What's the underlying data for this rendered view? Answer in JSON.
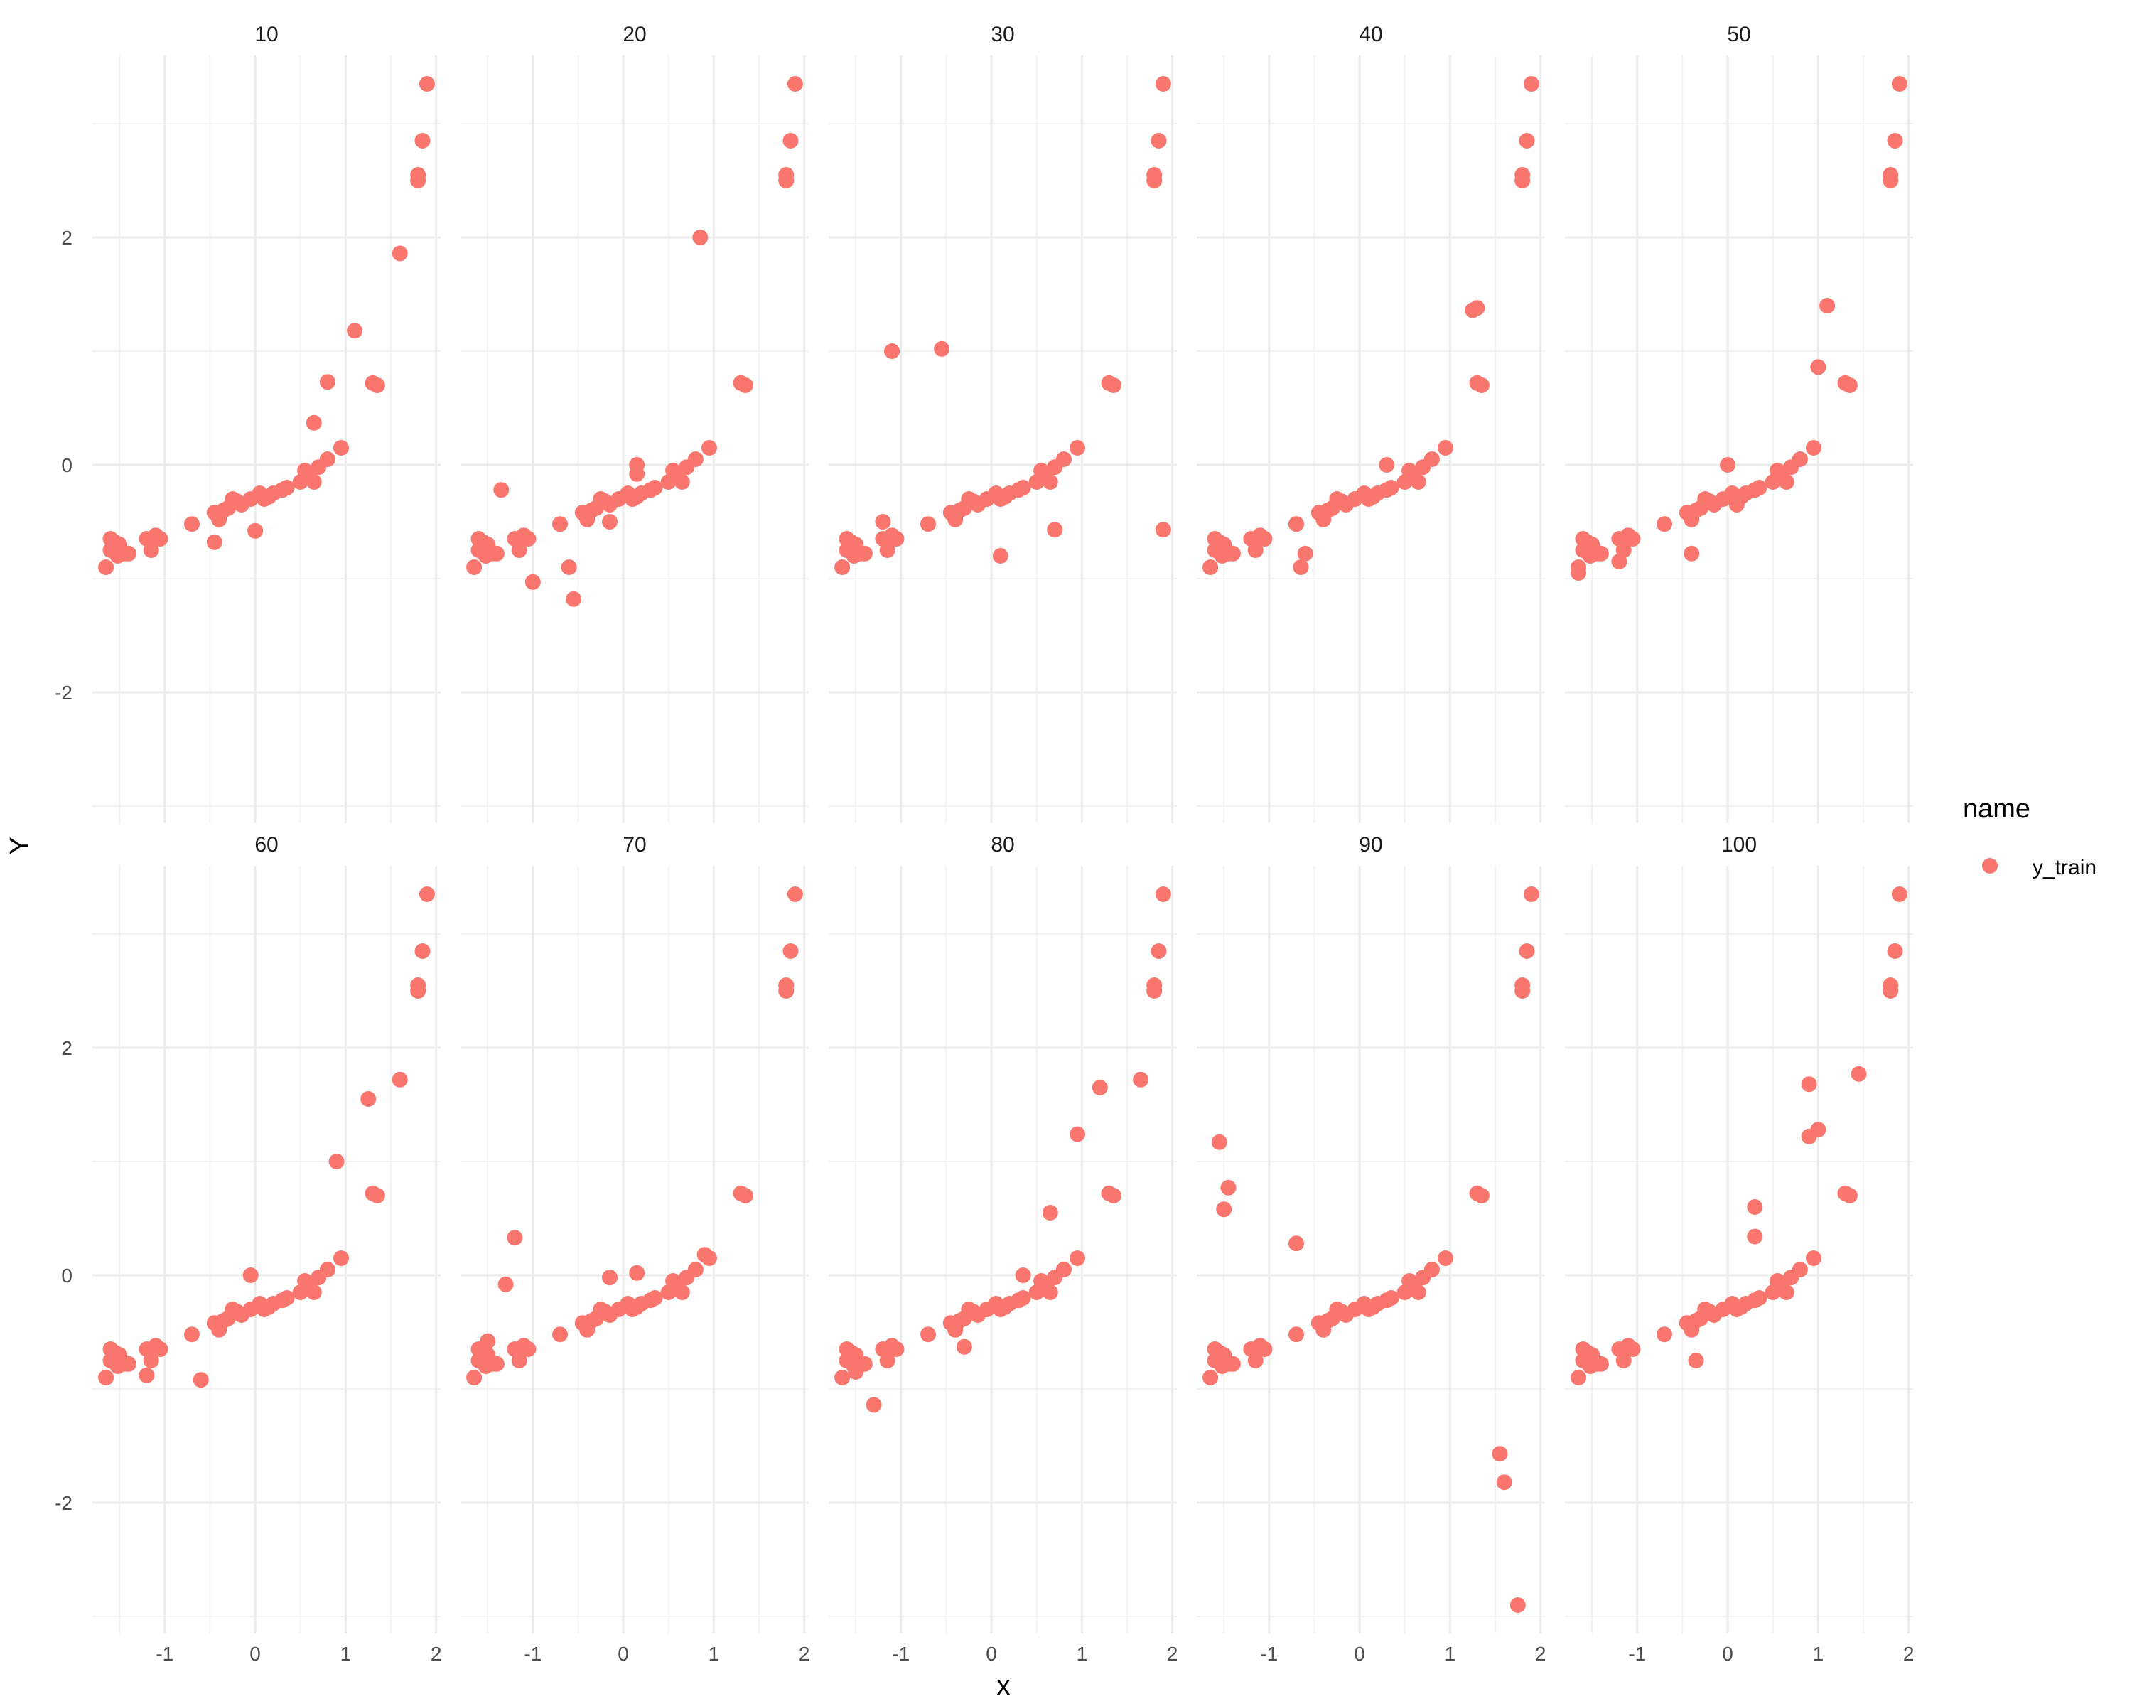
{
  "chart_data": {
    "type": "scatter",
    "facet_labels": [
      "10",
      "20",
      "30",
      "40",
      "50",
      "60",
      "70",
      "80",
      "90",
      "100"
    ],
    "xlabel": "x",
    "ylabel": "Y",
    "xlim": [
      -1.8,
      2.05
    ],
    "ylim": [
      -3.15,
      3.6
    ],
    "xticks": [
      -1,
      0,
      1,
      2
    ],
    "xtick_labels": [
      "-1",
      "0",
      "1",
      "2"
    ],
    "yticks": [
      -2,
      0,
      2
    ],
    "ytick_labels": [
      "-2",
      "0",
      "2"
    ],
    "grid": true,
    "legend": {
      "title": "name",
      "position": "right",
      "entries": [
        "y_train"
      ]
    },
    "colors": {
      "y_train": "#F8766D",
      "grid_major": "#EBEBEB",
      "grid_minor": "#F3F3F3",
      "text": "#4D4D4D"
    },
    "base_points": [
      [
        -1.65,
        -0.9
      ],
      [
        -1.6,
        -0.75
      ],
      [
        -1.6,
        -0.65
      ],
      [
        -1.55,
        -0.68
      ],
      [
        -1.52,
        -0.8
      ],
      [
        -1.5,
        -0.7
      ],
      [
        -1.45,
        -0.78
      ],
      [
        -1.4,
        -0.78
      ],
      [
        -1.2,
        -0.65
      ],
      [
        -1.15,
        -0.75
      ],
      [
        -1.1,
        -0.62
      ],
      [
        -1.05,
        -0.65
      ],
      [
        -0.7,
        -0.52
      ],
      [
        -0.45,
        -0.42
      ],
      [
        -0.4,
        -0.48
      ],
      [
        -0.35,
        -0.4
      ],
      [
        -0.3,
        -0.38
      ],
      [
        -0.25,
        -0.3
      ],
      [
        -0.2,
        -0.32
      ],
      [
        -0.15,
        -0.35
      ],
      [
        -0.05,
        -0.3
      ],
      [
        0.05,
        -0.25
      ],
      [
        0.1,
        -0.3
      ],
      [
        0.15,
        -0.28
      ],
      [
        0.2,
        -0.25
      ],
      [
        0.3,
        -0.22
      ],
      [
        0.35,
        -0.2
      ],
      [
        0.5,
        -0.15
      ],
      [
        0.55,
        -0.05
      ],
      [
        0.6,
        -0.1
      ],
      [
        0.65,
        -0.15
      ],
      [
        0.7,
        -0.02
      ],
      [
        0.8,
        0.05
      ],
      [
        0.95,
        0.15
      ],
      [
        1.3,
        0.72
      ],
      [
        1.35,
        0.7
      ],
      [
        1.8,
        2.5
      ],
      [
        1.8,
        2.55
      ],
      [
        1.85,
        2.85
      ],
      [
        1.9,
        3.35
      ]
    ],
    "series": [
      {
        "facet": "10",
        "name": "y_train",
        "extra_points": [
          [
            -0.45,
            -0.68
          ],
          [
            0.0,
            -0.58
          ],
          [
            0.65,
            0.37
          ],
          [
            0.8,
            0.73
          ],
          [
            1.1,
            1.18
          ],
          [
            1.6,
            1.86
          ]
        ]
      },
      {
        "facet": "20",
        "name": "y_train",
        "extra_points": [
          [
            -1.35,
            -0.22
          ],
          [
            -1.0,
            -1.03
          ],
          [
            -0.6,
            -0.9
          ],
          [
            -0.55,
            -1.18
          ],
          [
            -0.15,
            -0.5
          ],
          [
            0.15,
            0.0
          ],
          [
            0.15,
            -0.08
          ],
          [
            0.85,
            2.0
          ]
        ]
      },
      {
        "facet": "30",
        "name": "y_train",
        "extra_points": [
          [
            -1.2,
            -0.5
          ],
          [
            -1.1,
            1.0
          ],
          [
            -0.55,
            1.02
          ],
          [
            0.1,
            -0.8
          ],
          [
            0.7,
            -0.57
          ],
          [
            1.9,
            -0.57
          ]
        ]
      },
      {
        "facet": "40",
        "name": "y_train",
        "extra_points": [
          [
            -0.7,
            -0.52
          ],
          [
            -0.65,
            -0.9
          ],
          [
            -0.6,
            -0.78
          ],
          [
            0.3,
            0.0
          ],
          [
            1.25,
            1.36
          ],
          [
            1.3,
            1.38
          ]
        ]
      },
      {
        "facet": "50",
        "name": "y_train",
        "extra_points": [
          [
            -1.65,
            -0.95
          ],
          [
            -1.2,
            -0.85
          ],
          [
            -0.4,
            -0.78
          ],
          [
            0.0,
            0.0
          ],
          [
            0.1,
            -0.35
          ],
          [
            1.0,
            0.86
          ],
          [
            1.1,
            1.4
          ]
        ]
      },
      {
        "facet": "60",
        "name": "y_train",
        "extra_points": [
          [
            -1.2,
            -0.88
          ],
          [
            -0.6,
            -0.92
          ],
          [
            -0.05,
            0.0
          ],
          [
            0.9,
            1.0
          ],
          [
            1.25,
            1.55
          ],
          [
            1.6,
            1.72
          ]
        ]
      },
      {
        "facet": "70",
        "name": "y_train",
        "extra_points": [
          [
            -1.5,
            -0.58
          ],
          [
            -1.3,
            -0.08
          ],
          [
            -1.2,
            0.33
          ],
          [
            -0.15,
            -0.02
          ],
          [
            0.15,
            0.02
          ],
          [
            0.9,
            0.18
          ]
        ]
      },
      {
        "facet": "80",
        "name": "y_train",
        "extra_points": [
          [
            -1.5,
            -0.85
          ],
          [
            -1.3,
            -1.14
          ],
          [
            -0.3,
            -0.63
          ],
          [
            0.35,
            0.0
          ],
          [
            0.65,
            0.55
          ],
          [
            0.95,
            1.24
          ],
          [
            1.2,
            1.65
          ],
          [
            1.65,
            1.72
          ]
        ]
      },
      {
        "facet": "90",
        "name": "y_train",
        "extra_points": [
          [
            -1.55,
            1.17
          ],
          [
            -1.5,
            0.58
          ],
          [
            -1.45,
            0.77
          ],
          [
            -0.7,
            0.28
          ],
          [
            1.55,
            -1.57
          ],
          [
            1.6,
            -1.82
          ],
          [
            1.75,
            -2.9
          ]
        ]
      },
      {
        "facet": "100",
        "name": "y_train",
        "extra_points": [
          [
            -0.35,
            -0.75
          ],
          [
            0.3,
            0.34
          ],
          [
            0.3,
            0.6
          ],
          [
            0.9,
            1.22
          ],
          [
            0.9,
            1.68
          ],
          [
            1.0,
            1.28
          ],
          [
            1.45,
            1.77
          ]
        ]
      }
    ]
  }
}
